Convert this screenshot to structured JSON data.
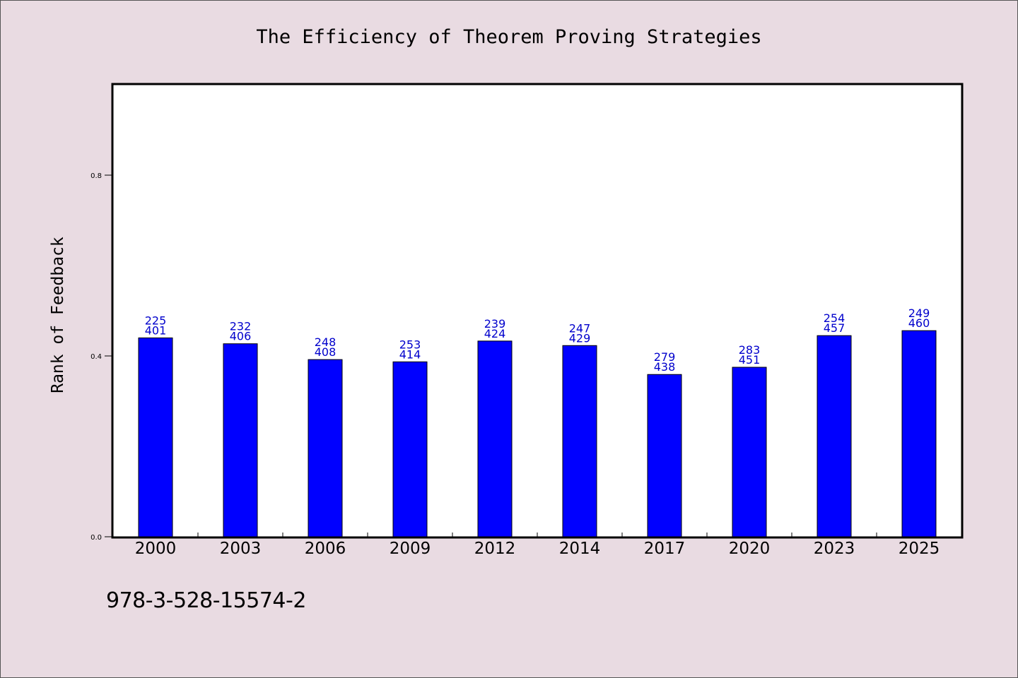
{
  "chart_data": {
    "type": "bar",
    "title": "The Efficiency of Theorem Proving Strategies",
    "xlabel": "",
    "ylabel": "Rank of Feedback",
    "categories": [
      "2000",
      "2003",
      "2006",
      "2009",
      "2012",
      "2014",
      "2017",
      "2020",
      "2023",
      "2025"
    ],
    "values": [
      0.44,
      0.427,
      0.392,
      0.387,
      0.433,
      0.423,
      0.359,
      0.375,
      0.445,
      0.456
    ],
    "bar_labels": [
      [
        "225",
        "401"
      ],
      [
        "232",
        "406"
      ],
      [
        "248",
        "408"
      ],
      [
        "253",
        "414"
      ],
      [
        "239",
        "424"
      ],
      [
        "247",
        "429"
      ],
      [
        "279",
        "438"
      ],
      [
        "283",
        "451"
      ],
      [
        "254",
        "457"
      ],
      [
        "249",
        "460"
      ]
    ],
    "ylim": [
      0,
      1.0
    ],
    "yticks": [
      0.0,
      0.4,
      0.8
    ],
    "ytick_labels": [
      "0.0",
      "0.4",
      "0.8"
    ],
    "grid": false,
    "colors": {
      "bar": "#0000ff",
      "label": "#0000cc",
      "background": "#e9dbe2",
      "plot_background": "#ffffff"
    }
  },
  "footer_text": "978-3-528-15574-2"
}
